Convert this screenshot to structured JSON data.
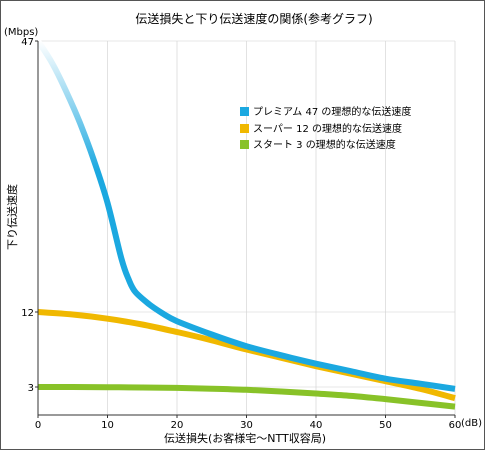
{
  "chart_data": {
    "type": "line",
    "title": "伝送損失と下り伝送速度の関係(参考グラフ)",
    "xlabel": "伝送損失(お客様宅〜NTT収容局)",
    "ylabel": "下り伝送速度",
    "x_unit": "(dB)",
    "y_unit": "(Mbps)",
    "xlim": [
      0,
      60
    ],
    "ylim": [
      0,
      47
    ],
    "x_ticks": [
      "0",
      "10",
      "20",
      "30",
      "40",
      "50",
      "60"
    ],
    "y_ticks": [
      "3",
      "12",
      "47"
    ],
    "y_scale": "nonlinear (tick labels at 3, 12, 47)",
    "legend_position": "upper-right",
    "series": [
      {
        "name": "プレミアム 47 の理想的な伝送速度",
        "color": "#1ba8e0",
        "x": [
          0,
          2,
          4,
          6,
          8,
          10,
          12,
          13,
          14,
          16,
          18,
          20,
          25,
          30,
          35,
          40,
          45,
          50,
          55,
          60
        ],
        "y": [
          47,
          44.2,
          40.6,
          36.5,
          31.7,
          26.1,
          18.9,
          16.3,
          14.6,
          13.0,
          11.8,
          10.9,
          9.3,
          7.9,
          6.8,
          5.8,
          4.9,
          4.0,
          3.4,
          2.8
        ]
      },
      {
        "name": "スーパー 12 の理想的な伝送速度",
        "color": "#f0b800",
        "x": [
          0,
          5,
          10,
          15,
          20,
          25,
          30,
          35,
          40,
          45,
          50,
          55,
          60
        ],
        "y": [
          12,
          11.7,
          11.2,
          10.5,
          9.6,
          8.6,
          7.5,
          6.5,
          5.5,
          4.6,
          3.7,
          2.8,
          1.8
        ]
      },
      {
        "name": "スタート 3 の理想的な伝送速度",
        "color": "#88c228",
        "x": [
          0,
          5,
          10,
          15,
          20,
          25,
          30,
          35,
          40,
          45,
          50,
          55,
          60
        ],
        "y": [
          3,
          3,
          2.98,
          2.95,
          2.9,
          2.82,
          2.7,
          2.52,
          2.3,
          2.05,
          1.7,
          1.3,
          0.9
        ]
      }
    ]
  }
}
